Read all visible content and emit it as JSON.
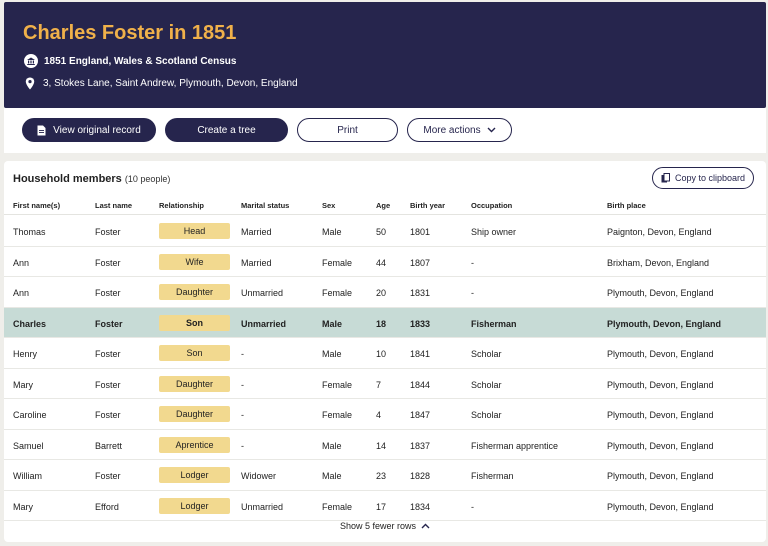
{
  "header": {
    "title": "Charles Foster in 1851",
    "census": "1851 England, Wales & Scotland Census",
    "address": "3, Stokes Lane, Saint Andrew, Plymouth, Devon, England",
    "icons": [
      "census-icon",
      "location-pin-icon"
    ]
  },
  "actions": {
    "view_record": "View original record",
    "create_tree": "Create a tree",
    "print": "Print",
    "more_actions": "More actions"
  },
  "household": {
    "title": "Household members",
    "count": "(10 people)",
    "copy_label": "Copy to clipboard",
    "columns": [
      "First name(s)",
      "Last name",
      "Relationship",
      "Marital status",
      "Sex",
      "Age",
      "Birth year",
      "Occupation",
      "Birth place"
    ],
    "rows": [
      [
        "Thomas",
        "Foster",
        "Head",
        "Married",
        "Male",
        "50",
        "1801",
        "Ship owner",
        "Paignton, Devon, England"
      ],
      [
        "Ann",
        "Foster",
        "Wife",
        "Married",
        "Female",
        "44",
        "1807",
        "-",
        "Brixham, Devon, England"
      ],
      [
        "Ann",
        "Foster",
        "Daughter",
        "Unmarried",
        "Female",
        "20",
        "1831",
        "-",
        "Plymouth, Devon, England"
      ],
      [
        "Charles",
        "Foster",
        "Son",
        "Unmarried",
        "Male",
        "18",
        "1833",
        "Fisherman",
        "Plymouth, Devon, England"
      ],
      [
        "Henry",
        "Foster",
        "Son",
        "-",
        "Male",
        "10",
        "1841",
        "Scholar",
        "Plymouth, Devon, England"
      ],
      [
        "Mary",
        "Foster",
        "Daughter",
        "-",
        "Female",
        "7",
        "1844",
        "Scholar",
        "Plymouth, Devon, England"
      ],
      [
        "Caroline",
        "Foster",
        "Daughter",
        "-",
        "Female",
        "4",
        "1847",
        "Scholar",
        "Plymouth, Devon, England"
      ],
      [
        "Samuel",
        "Barrett",
        "Aprentice",
        "-",
        "Male",
        "14",
        "1837",
        "Fisherman apprentice",
        "Plymouth, Devon, England"
      ],
      [
        "William",
        "Foster",
        "Lodger",
        "Widower",
        "Male",
        "23",
        "1828",
        "Fisherman",
        "Plymouth, Devon, England"
      ],
      [
        "Mary",
        "Efford",
        "Lodger",
        "Unmarried",
        "Female",
        "17",
        "1834",
        "-",
        "Plymouth, Devon, England"
      ]
    ],
    "highlighted_row": 3,
    "toggle_label": "Show 5 fewer rows"
  },
  "colors": {
    "navy": "#26254d",
    "gold": "#f0b14a",
    "badge": "#f2d98f",
    "highlight": "#c7dbd6"
  }
}
